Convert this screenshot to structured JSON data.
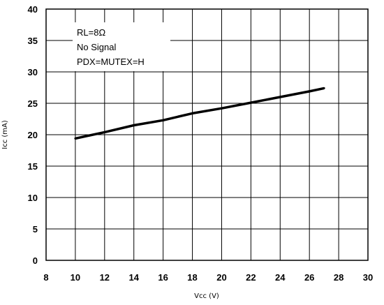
{
  "chart_data": {
    "type": "line",
    "xlabel": "Vcc (V)",
    "ylabel": "Icc (mA)",
    "xlim": [
      8,
      30
    ],
    "ylim": [
      0,
      40
    ],
    "x_ticks": [
      8,
      10,
      12,
      14,
      16,
      18,
      20,
      22,
      24,
      26,
      28,
      30
    ],
    "y_ticks": [
      0,
      5,
      10,
      15,
      20,
      25,
      30,
      35,
      40
    ],
    "grid": true,
    "series": [
      {
        "x": [
          10,
          12,
          14,
          16,
          18,
          20,
          22,
          24,
          26,
          27
        ],
        "y": [
          19.4,
          20.4,
          21.5,
          22.3,
          23.4,
          24.2,
          25.1,
          26.0,
          26.9,
          27.4
        ]
      }
    ],
    "annotations": [
      "RL=8Ω",
      "No Signal",
      "PDX=MUTEX=H"
    ],
    "line_color": "#000000",
    "grid_color": "#000000"
  }
}
